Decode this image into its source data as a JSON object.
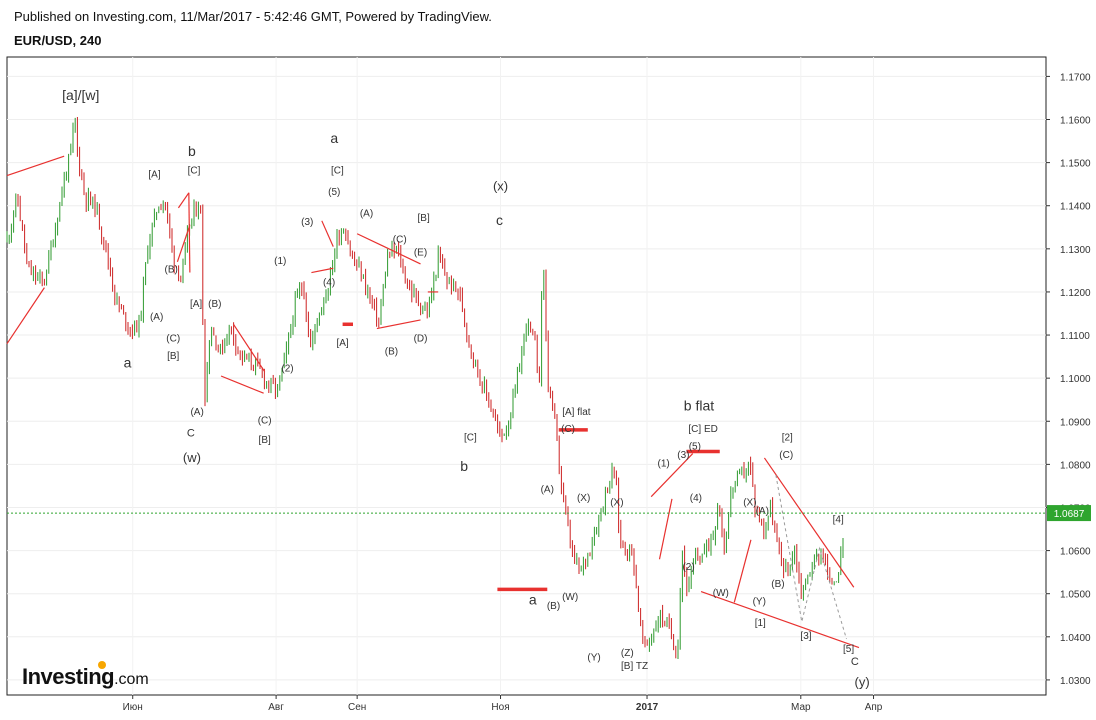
{
  "header": {
    "published": "Published on Investing.com, 11/Mar/2017 - 5:42:46 GMT, Powered by TradingView.",
    "symbol": "EUR/USD, 240"
  },
  "brand": {
    "name": "Investing",
    "domain": ".com"
  },
  "colors": {
    "up": "#2e9a2e",
    "down": "#cc2222",
    "annotation_line": "#e8312f",
    "price_line": "#2fa52f",
    "forecast": "#9a9a9a"
  },
  "chart_data": {
    "type": "candlestick",
    "x_ticks": [
      {
        "label": "Июн",
        "t": 0.121
      },
      {
        "label": "Авг",
        "t": 0.259
      },
      {
        "label": "Сен",
        "t": 0.337
      },
      {
        "label": "Ноя",
        "t": 0.475
      },
      {
        "label": "2017",
        "t": 0.616,
        "bold": true
      },
      {
        "label": "Мар",
        "t": 0.764
      },
      {
        "label": "Апр",
        "t": 0.834
      }
    ],
    "y_ticks": [
      1.17,
      1.16,
      1.15,
      1.14,
      1.13,
      1.12,
      1.11,
      1.1,
      1.09,
      1.08,
      1.07,
      1.06,
      1.05,
      1.04,
      1.03
    ],
    "ylim": [
      1.0265,
      1.1745
    ],
    "current_price": 1.0687,
    "current_price_label": "1.0687",
    "price_path": [
      [
        0.0,
        1.132
      ],
      [
        0.01,
        1.142
      ],
      [
        0.02,
        1.125
      ],
      [
        0.035,
        1.122
      ],
      [
        0.045,
        1.133
      ],
      [
        0.055,
        1.146
      ],
      [
        0.062,
        1.153
      ],
      [
        0.065,
        1.161
      ],
      [
        0.068,
        1.152
      ],
      [
        0.075,
        1.142
      ],
      [
        0.085,
        1.14
      ],
      [
        0.095,
        1.13
      ],
      [
        0.105,
        1.118
      ],
      [
        0.115,
        1.113
      ],
      [
        0.12,
        1.111
      ],
      [
        0.128,
        1.113
      ],
      [
        0.135,
        1.13
      ],
      [
        0.145,
        1.14
      ],
      [
        0.152,
        1.141
      ],
      [
        0.16,
        1.128
      ],
      [
        0.168,
        1.123
      ],
      [
        0.175,
        1.135
      ],
      [
        0.183,
        1.14
      ],
      [
        0.186,
        1.142
      ],
      [
        0.19,
        1.095
      ],
      [
        0.196,
        1.112
      ],
      [
        0.205,
        1.106
      ],
      [
        0.215,
        1.112
      ],
      [
        0.225,
        1.105
      ],
      [
        0.24,
        1.103
      ],
      [
        0.25,
        1.099
      ],
      [
        0.26,
        1.097
      ],
      [
        0.268,
        1.105
      ],
      [
        0.278,
        1.118
      ],
      [
        0.285,
        1.122
      ],
      [
        0.292,
        1.107
      ],
      [
        0.3,
        1.115
      ],
      [
        0.31,
        1.122
      ],
      [
        0.318,
        1.133
      ],
      [
        0.325,
        1.135
      ],
      [
        0.333,
        1.127
      ],
      [
        0.34,
        1.125
      ],
      [
        0.35,
        1.118
      ],
      [
        0.358,
        1.113
      ],
      [
        0.366,
        1.128
      ],
      [
        0.375,
        1.13
      ],
      [
        0.385,
        1.122
      ],
      [
        0.395,
        1.118
      ],
      [
        0.405,
        1.115
      ],
      [
        0.415,
        1.128
      ],
      [
        0.425,
        1.122
      ],
      [
        0.435,
        1.12
      ],
      [
        0.445,
        1.108
      ],
      [
        0.455,
        1.1
      ],
      [
        0.465,
        1.094
      ],
      [
        0.475,
        1.086
      ],
      [
        0.483,
        1.09
      ],
      [
        0.49,
        1.098
      ],
      [
        0.5,
        1.113
      ],
      [
        0.508,
        1.108
      ],
      [
        0.512,
        1.098
      ],
      [
        0.516,
        1.13
      ],
      [
        0.52,
        1.1
      ],
      [
        0.527,
        1.09
      ],
      [
        0.535,
        1.072
      ],
      [
        0.545,
        1.058
      ],
      [
        0.552,
        1.055
      ],
      [
        0.56,
        1.06
      ],
      [
        0.57,
        1.068
      ],
      [
        0.578,
        1.075
      ],
      [
        0.585,
        1.079
      ],
      [
        0.59,
        1.062
      ],
      [
        0.598,
        1.06
      ],
      [
        0.602,
        1.06
      ],
      [
        0.608,
        1.046
      ],
      [
        0.613,
        1.037
      ],
      [
        0.62,
        1.04
      ],
      [
        0.628,
        1.045
      ],
      [
        0.635,
        1.043
      ],
      [
        0.64,
        1.04
      ],
      [
        0.645,
        1.036
      ],
      [
        0.65,
        1.06
      ],
      [
        0.655,
        1.05
      ],
      [
        0.662,
        1.058
      ],
      [
        0.672,
        1.06
      ],
      [
        0.68,
        1.064
      ],
      [
        0.685,
        1.072
      ],
      [
        0.69,
        1.06
      ],
      [
        0.698,
        1.075
      ],
      [
        0.708,
        1.078
      ],
      [
        0.715,
        1.08
      ],
      [
        0.72,
        1.07
      ],
      [
        0.728,
        1.065
      ],
      [
        0.735,
        1.07
      ],
      [
        0.742,
        1.06
      ],
      [
        0.75,
        1.055
      ],
      [
        0.758,
        1.06
      ],
      [
        0.765,
        1.05
      ],
      [
        0.775,
        1.057
      ],
      [
        0.785,
        1.06
      ],
      [
        0.792,
        1.052
      ],
      [
        0.8,
        1.055
      ],
      [
        0.805,
        1.062
      ]
    ]
  },
  "annotations": [
    {
      "text": "[a]/[w]",
      "t": 0.071,
      "p": 1.1645,
      "size": 14
    },
    {
      "text": "b",
      "t": 0.178,
      "p": 1.1515,
      "size": 14
    },
    {
      "text": "[C]",
      "t": 0.18,
      "p": 1.1475,
      "size": 10
    },
    {
      "text": "[A]",
      "t": 0.142,
      "p": 1.1465,
      "size": 10
    },
    {
      "text": "(B)",
      "t": 0.158,
      "p": 1.1245,
      "size": 10
    },
    {
      "text": "(A)",
      "t": 0.144,
      "p": 1.1135,
      "size": 10
    },
    {
      "text": "[A]",
      "t": 0.182,
      "p": 1.1165,
      "size": 10
    },
    {
      "text": "(B)",
      "t": 0.2,
      "p": 1.1165,
      "size": 10
    },
    {
      "text": "(C)",
      "t": 0.16,
      "p": 1.1085,
      "size": 10
    },
    {
      "text": "[B]",
      "t": 0.16,
      "p": 1.1045,
      "size": 10
    },
    {
      "text": "a",
      "t": 0.116,
      "p": 1.1025,
      "size": 14
    },
    {
      "text": "(A)",
      "t": 0.183,
      "p": 1.0915,
      "size": 10
    },
    {
      "text": "C",
      "t": 0.177,
      "p": 1.0865,
      "size": 11
    },
    {
      "text": "(w)",
      "t": 0.178,
      "p": 1.0805,
      "size": 13
    },
    {
      "text": "(1)",
      "t": 0.263,
      "p": 1.1265,
      "size": 10
    },
    {
      "text": "(2)",
      "t": 0.27,
      "p": 1.1015,
      "size": 10
    },
    {
      "text": "(C)",
      "t": 0.248,
      "p": 1.0895,
      "size": 10
    },
    {
      "text": "[B]",
      "t": 0.248,
      "p": 1.085,
      "size": 10
    },
    {
      "text": "a",
      "t": 0.315,
      "p": 1.1545,
      "size": 14
    },
    {
      "text": "[C]",
      "t": 0.318,
      "p": 1.1475,
      "size": 10
    },
    {
      "text": "(5)",
      "t": 0.315,
      "p": 1.1425,
      "size": 10
    },
    {
      "text": "(3)",
      "t": 0.289,
      "p": 1.1355,
      "size": 10
    },
    {
      "text": "(4)",
      "t": 0.31,
      "p": 1.1215,
      "size": 10
    },
    {
      "text": "[A]",
      "t": 0.323,
      "p": 1.1075,
      "size": 10
    },
    {
      "text": "(A)",
      "t": 0.346,
      "p": 1.1375,
      "size": 10
    },
    {
      "text": "[B]",
      "t": 0.401,
      "p": 1.1365,
      "size": 10
    },
    {
      "text": "(C)",
      "t": 0.378,
      "p": 1.1315,
      "size": 10
    },
    {
      "text": "(E)",
      "t": 0.398,
      "p": 1.1285,
      "size": 10
    },
    {
      "text": "(B)",
      "t": 0.37,
      "p": 1.1055,
      "size": 10
    },
    {
      "text": "(D)",
      "t": 0.398,
      "p": 1.1085,
      "size": 10
    },
    {
      "text": "(x)",
      "t": 0.475,
      "p": 1.1435,
      "size": 13
    },
    {
      "text": "c",
      "t": 0.474,
      "p": 1.1355,
      "size": 14
    },
    {
      "text": "[C]",
      "t": 0.446,
      "p": 1.0855,
      "size": 10
    },
    {
      "text": "b",
      "t": 0.44,
      "p": 1.0785,
      "size": 14
    },
    {
      "text": "[A] flat",
      "t": 0.548,
      "p": 1.0915,
      "size": 10
    },
    {
      "text": "(C)",
      "t": 0.54,
      "p": 1.0875,
      "size": 10
    },
    {
      "text": "(A)",
      "t": 0.52,
      "p": 1.0735,
      "size": 10
    },
    {
      "text": "(X)",
      "t": 0.555,
      "p": 1.0715,
      "size": 10
    },
    {
      "text": "a",
      "t": 0.506,
      "p": 1.0475,
      "size": 14
    },
    {
      "text": "(B)",
      "t": 0.526,
      "p": 1.0465,
      "size": 10
    },
    {
      "text": "(W)",
      "t": 0.542,
      "p": 1.0485,
      "size": 10
    },
    {
      "text": "(X)",
      "t": 0.587,
      "p": 1.0705,
      "size": 10
    },
    {
      "text": "(Y)",
      "t": 0.565,
      "p": 1.0345,
      "size": 10
    },
    {
      "text": "(Z)",
      "t": 0.597,
      "p": 1.0355,
      "size": 10
    },
    {
      "text": "[B] TZ",
      "t": 0.604,
      "p": 1.0325,
      "size": 10
    },
    {
      "text": "b flat",
      "t": 0.666,
      "p": 1.0925,
      "size": 14
    },
    {
      "text": "[C] ED",
      "t": 0.67,
      "p": 1.0875,
      "size": 10
    },
    {
      "text": "(5)",
      "t": 0.662,
      "p": 1.0835,
      "size": 10
    },
    {
      "text": "(3)",
      "t": 0.651,
      "p": 1.0815,
      "size": 10
    },
    {
      "text": "(1)",
      "t": 0.632,
      "p": 1.0795,
      "size": 10
    },
    {
      "text": "(4)",
      "t": 0.663,
      "p": 1.0715,
      "size": 10
    },
    {
      "text": "(2)",
      "t": 0.656,
      "p": 1.0555,
      "size": 10
    },
    {
      "text": "(X)",
      "t": 0.715,
      "p": 1.0705,
      "size": 10
    },
    {
      "text": "(A)",
      "t": 0.727,
      "p": 1.0685,
      "size": 10
    },
    {
      "text": "(B)",
      "t": 0.742,
      "p": 1.0515,
      "size": 10
    },
    {
      "text": "(W)",
      "t": 0.687,
      "p": 1.0495,
      "size": 10
    },
    {
      "text": "(Y)",
      "t": 0.724,
      "p": 1.0475,
      "size": 10
    },
    {
      "text": "[1]",
      "t": 0.725,
      "p": 1.0425,
      "size": 10
    },
    {
      "text": "[2]",
      "t": 0.751,
      "p": 1.0855,
      "size": 10
    },
    {
      "text": "(C)",
      "t": 0.75,
      "p": 1.0815,
      "size": 10
    },
    {
      "text": "[4]",
      "t": 0.8,
      "p": 1.0665,
      "size": 10
    },
    {
      "text": "[3]",
      "t": 0.769,
      "p": 1.0395,
      "size": 10
    },
    {
      "text": "[5]",
      "t": 0.81,
      "p": 1.0365,
      "size": 10
    },
    {
      "text": "C",
      "t": 0.816,
      "p": 1.0335,
      "size": 11
    },
    {
      "text": "(y)",
      "t": 0.823,
      "p": 1.0285,
      "size": 13
    }
  ],
  "trendlines": [
    {
      "t1": 0.0,
      "p1": 1.108,
      "t2": 0.036,
      "p2": 1.121
    },
    {
      "t1": 0.0,
      "p1": 1.147,
      "t2": 0.055,
      "p2": 1.1515
    },
    {
      "t1": 0.164,
      "p1": 1.127,
      "t2": 0.176,
      "p2": 1.1355
    },
    {
      "t1": 0.165,
      "p1": 1.1395,
      "t2": 0.175,
      "p2": 1.143
    },
    {
      "t1": 0.175,
      "p1": 1.143,
      "t2": 0.176,
      "p2": 1.1245
    },
    {
      "t1": 0.206,
      "p1": 1.1005,
      "t2": 0.247,
      "p2": 1.0965
    },
    {
      "t1": 0.218,
      "p1": 1.1125,
      "t2": 0.248,
      "p2": 1.1015
    },
    {
      "t1": 0.293,
      "p1": 1.1245,
      "t2": 0.314,
      "p2": 1.1255
    },
    {
      "t1": 0.303,
      "p1": 1.1365,
      "t2": 0.314,
      "p2": 1.1305
    },
    {
      "t1": 0.337,
      "p1": 1.1335,
      "t2": 0.398,
      "p2": 1.1265
    },
    {
      "t1": 0.356,
      "p1": 1.1115,
      "t2": 0.398,
      "p2": 1.1135
    },
    {
      "t1": 0.405,
      "p1": 1.12,
      "t2": 0.415,
      "p2": 1.12
    },
    {
      "t1": 0.62,
      "p1": 1.0725,
      "t2": 0.66,
      "p2": 1.0825
    },
    {
      "t1": 0.628,
      "p1": 1.058,
      "t2": 0.64,
      "p2": 1.072
    },
    {
      "t1": 0.668,
      "p1": 1.0505,
      "t2": 0.82,
      "p2": 1.0375
    },
    {
      "t1": 0.7,
      "p1": 1.048,
      "t2": 0.716,
      "p2": 1.0625
    },
    {
      "t1": 0.729,
      "p1": 1.0815,
      "t2": 0.815,
      "p2": 1.0515
    }
  ],
  "levels": [
    {
      "t1": 0.323,
      "t2": 0.333,
      "p": 1.1125
    },
    {
      "t1": 0.472,
      "t2": 0.52,
      "p": 1.051
    },
    {
      "t1": 0.531,
      "t2": 0.559,
      "p": 1.088
    },
    {
      "t1": 0.654,
      "t2": 0.686,
      "p": 1.083
    }
  ],
  "forecast": [
    [
      0.74,
      1.0775
    ],
    [
      0.765,
      1.0435
    ],
    [
      0.782,
      1.0605
    ],
    [
      0.808,
      1.0395
    ]
  ]
}
